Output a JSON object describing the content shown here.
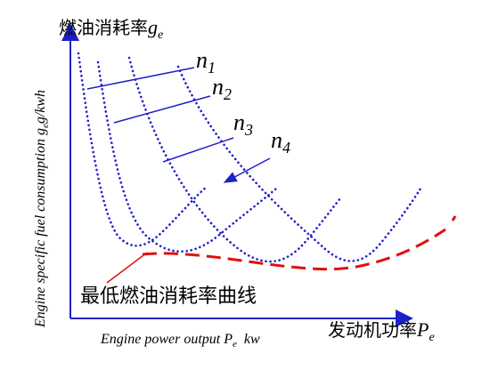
{
  "title": {
    "text": "燃油消耗率",
    "symbol": "g",
    "subscript": "e"
  },
  "y_axis_label": {
    "text": "Engine specific fuel consumption ",
    "symbol": "g",
    "subscript": "e",
    "unit": "g/kwh"
  },
  "x_axis_label": {
    "text": "Engine power output ",
    "symbol": "P",
    "subscript": "e",
    "unit": "kw"
  },
  "x_axis_title": {
    "text": "发动机功率",
    "symbol": "P",
    "subscript": "e"
  },
  "speed_labels": [
    {
      "symbol": "n",
      "subscript": "1"
    },
    {
      "symbol": "n",
      "subscript": "2"
    },
    {
      "symbol": "n",
      "subscript": "3"
    },
    {
      "symbol": "n",
      "subscript": "4"
    }
  ],
  "curve_label": "最低燃油消耗率曲线"
}
